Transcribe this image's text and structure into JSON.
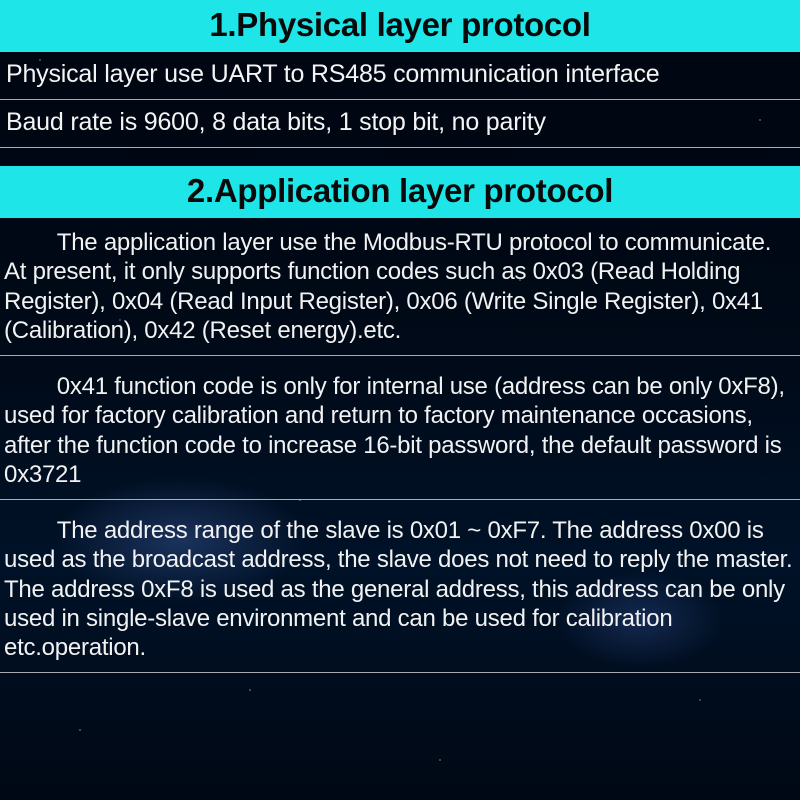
{
  "style": {
    "header_bg": "#1de5e8",
    "header_color": "#0a0a0a",
    "divider_color": "#c8c8c8",
    "body_text_color": "#f2f2f2",
    "background_base": "#000814",
    "header_fontsize_pt": 25,
    "body_fontsize_pt": 18,
    "para_fontsize_pt": 18,
    "font_family": "Segoe UI / Arial"
  },
  "sections": {
    "s1": {
      "title": "1.Physical layer protocol",
      "rows": {
        "r1": "Physical layer use UART to RS485 communication interface",
        "r2": "Baud rate is 9600, 8 data bits, 1 stop bit, no parity"
      }
    },
    "s2": {
      "title": "2.Application layer protocol",
      "paragraphs": {
        "p1": "The application layer use the Modbus-RTU protocol to communicate. At present, it only supports function codes such as 0x03 (Read Holding Register), 0x04 (Read Input Register), 0x06 (Write Single Register), 0x41 (Calibration), 0x42 (Reset energy).etc.",
        "p2": "0x41 function code is only for internal use (address can be only 0xF8), used for factory calibration and return to factory maintenance occasions, after the function code to increase 16-bit password, the default password is 0x3721",
        "p3": "The address range of the slave is 0x01 ~ 0xF7. The address 0x00 is used as the broadcast address, the slave does not need to reply the master. The address 0xF8 is used as the general address, this address can be only used in single-slave environment and can be used for calibration etc.operation."
      }
    }
  }
}
